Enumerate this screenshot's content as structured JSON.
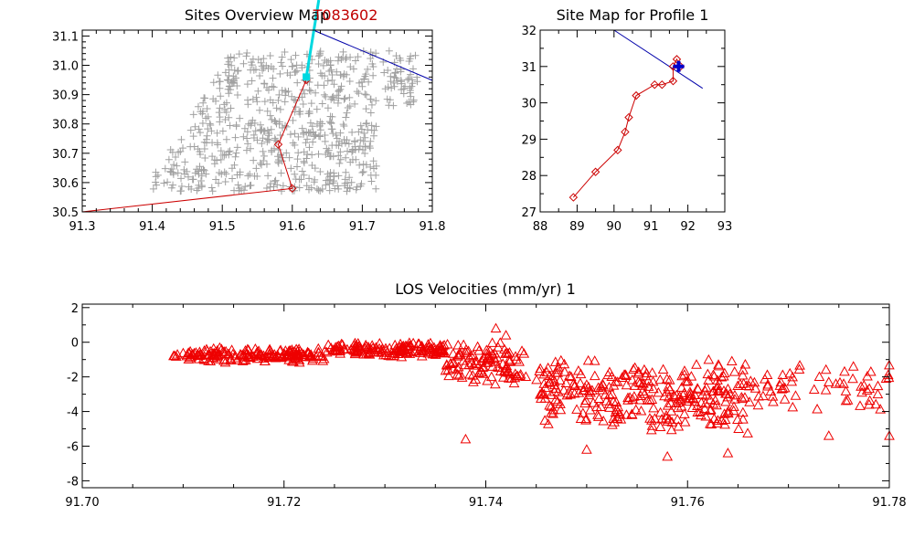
{
  "chart_data": [
    {
      "id": "overview",
      "type": "scatter",
      "title": "Sites Overview Map",
      "overlay_label": "T083602",
      "xlim": [
        91.3,
        91.8
      ],
      "ylim": [
        30.5,
        31.12
      ],
      "xticks": [
        "91.3",
        "91.4",
        "91.5",
        "91.6",
        "91.7",
        "91.8"
      ],
      "yticks": [
        "30.5",
        "30.6",
        "30.7",
        "30.8",
        "30.9",
        "31.0",
        "31.1"
      ],
      "colors": {
        "sites": "#a0a0a0",
        "profile": "#cc0000",
        "track": "#00d8e0",
        "line": "#0000aa"
      },
      "sites_extent": {
        "x": [
          91.4,
          91.78
        ],
        "y": [
          30.57,
          31.05
        ]
      },
      "profile": [
        [
          91.3,
          30.5
        ],
        [
          91.6,
          30.58
        ],
        [
          91.58,
          30.73
        ],
        [
          91.62,
          30.95
        ]
      ],
      "track": [
        [
          91.62,
          30.96
        ],
        [
          91.63,
          31.12
        ]
      ],
      "line": [
        [
          91.63,
          31.12
        ],
        [
          91.8,
          30.93
        ]
      ]
    },
    {
      "id": "sitemap",
      "type": "line",
      "title": "Site Map for Profile  1",
      "xlim": [
        88,
        93
      ],
      "ylim": [
        27,
        32
      ],
      "xticks": [
        "88",
        "89",
        "90",
        "91",
        "92",
        "93"
      ],
      "yticks": [
        "27",
        "28",
        "29",
        "30",
        "31",
        "32"
      ],
      "colors": {
        "profile": "#cc0000",
        "line": "#0000aa",
        "marker": "#0000cc"
      },
      "profile": [
        [
          88.9,
          27.4
        ],
        [
          89.5,
          28.1
        ],
        [
          90.1,
          28.7
        ],
        [
          90.3,
          29.2
        ],
        [
          90.4,
          29.6
        ],
        [
          90.6,
          30.2
        ],
        [
          91.1,
          30.5
        ],
        [
          91.3,
          30.5
        ],
        [
          91.6,
          30.6
        ],
        [
          91.6,
          31.0
        ],
        [
          91.7,
          31.2
        ],
        [
          91.8,
          31.0
        ]
      ],
      "line": [
        [
          90.0,
          32.0
        ],
        [
          92.4,
          30.4
        ]
      ],
      "marker": [
        91.75,
        31.0
      ]
    },
    {
      "id": "los",
      "type": "scatter",
      "title": "LOS Velocities (mm/yr)  1",
      "xlim": [
        91.7,
        91.78
      ],
      "ylim": [
        -8.4,
        2.2
      ],
      "xticks": [
        "91.70",
        "91.72",
        "91.74",
        "91.76",
        "91.78"
      ],
      "yticks": [
        "-8",
        "-6",
        "-4",
        "-2",
        "0",
        "2"
      ],
      "colors": {
        "points": "#ee0000"
      },
      "clusters": [
        {
          "x": [
            91.709,
            91.712
          ],
          "y": [
            -1.0,
            -0.5
          ],
          "n": 25
        },
        {
          "x": [
            91.712,
            91.724
          ],
          "y": [
            -1.2,
            -0.3
          ],
          "n": 160
        },
        {
          "x": [
            91.724,
            91.736
          ],
          "y": [
            -0.9,
            0.0
          ],
          "n": 160
        },
        {
          "x": [
            91.736,
            91.744
          ],
          "y": [
            -2.6,
            0.2
          ],
          "n": 110
        },
        {
          "x": [
            91.745,
            91.756
          ],
          "y": [
            -5.0,
            -0.8
          ],
          "n": 150
        },
        {
          "x": [
            91.756,
            91.766
          ],
          "y": [
            -5.5,
            -0.8
          ],
          "n": 150
        },
        {
          "x": [
            91.766,
            91.78
          ],
          "y": [
            -4.2,
            -0.9
          ],
          "n": 60
        }
      ],
      "outliers": [
        [
          91.738,
          -5.6
        ],
        [
          91.75,
          -6.2
        ],
        [
          91.758,
          -6.6
        ],
        [
          91.764,
          -6.4
        ],
        [
          91.774,
          -5.4
        ],
        [
          91.78,
          -5.4
        ],
        [
          91.774,
          -2.3
        ],
        [
          91.778,
          -3.6
        ],
        [
          91.741,
          0.8
        ],
        [
          91.742,
          0.4
        ]
      ]
    }
  ]
}
